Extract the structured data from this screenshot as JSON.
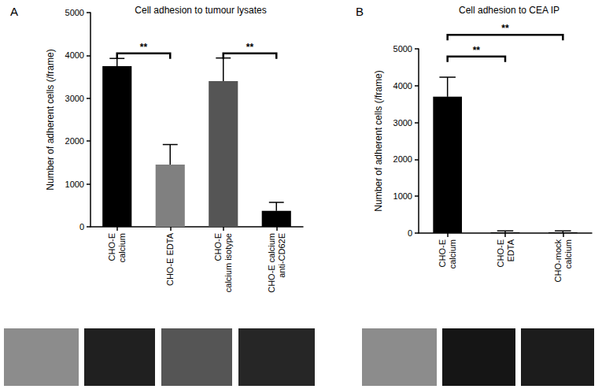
{
  "chart_data": [
    {
      "type": "bar",
      "panel": "A",
      "title": "Cell adhesion to tumour lysates",
      "y_label": "Number of adherent cells (/frame)",
      "categories": [
        "CHO-E\ncalcium",
        "CHO-E EDTA",
        "CHO-E\ncalcium isotype",
        "CHO-E calcium\nanti-CD62E"
      ],
      "values": [
        3750,
        1450,
        3400,
        370
      ],
      "errors": [
        180,
        470,
        540,
        200
      ],
      "colors": [
        "#000000",
        "#808080",
        "#555555",
        "#000000"
      ],
      "ylim": [
        0,
        5000
      ],
      "yticks": [
        0,
        1000,
        2000,
        3000,
        4000,
        5000
      ],
      "grid": false,
      "annotations": [
        {
          "text": "**",
          "x1": 0,
          "x2": 1,
          "y": 4050
        },
        {
          "text": "**",
          "x1": 2,
          "x2": 3,
          "y": 4050
        }
      ]
    },
    {
      "type": "bar",
      "panel": "B",
      "title": "Cell adhesion to CEA IP",
      "y_label": "Number of adherent cells (/frame)",
      "categories": [
        "CHO-E\ncalcium",
        "CHO-E\nEDTA",
        "CHO-mock\ncalcium"
      ],
      "values": [
        3700,
        20,
        20
      ],
      "errors": [
        530,
        40,
        40
      ],
      "colors": [
        "#000000",
        "#000000",
        "#000000"
      ],
      "ylim": [
        0,
        5000
      ],
      "yticks": [
        0,
        1000,
        2000,
        3000,
        4000,
        5000
      ],
      "grid": false,
      "annotations": [
        {
          "text": "**",
          "x1": 0,
          "x2": 1,
          "y": 4790
        },
        {
          "text": "**",
          "x1": 0,
          "x2": 2,
          "y": 5380
        }
      ]
    }
  ]
}
